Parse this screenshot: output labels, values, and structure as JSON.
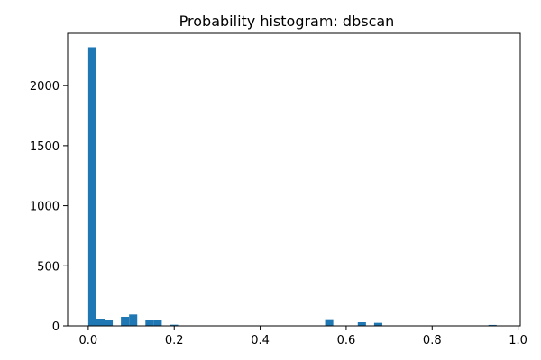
{
  "chart_data": {
    "type": "bar",
    "title": "Probability histogram: dbscan",
    "xlabel": "",
    "ylabel": "",
    "xlim": [
      -0.048,
      1.005
    ],
    "ylim": [
      0,
      2436
    ],
    "xticks": [
      0.0,
      0.2,
      0.4,
      0.6,
      0.8,
      1.0
    ],
    "xtick_labels": [
      "0.0",
      "0.2",
      "0.4",
      "0.6",
      "0.8",
      "1.0"
    ],
    "yticks": [
      0,
      500,
      1000,
      1500,
      2000
    ],
    "ytick_labels": [
      "0",
      "500",
      "1000",
      "1500",
      "2000"
    ],
    "grid": false,
    "bar_color": "#1f77b4",
    "bins": {
      "start": 0.0,
      "width": 0.019,
      "counts": [
        2320,
        60,
        45,
        0,
        75,
        95,
        0,
        45,
        45,
        0,
        10,
        0,
        0,
        0,
        0,
        0,
        0,
        0,
        0,
        0,
        0,
        0,
        0,
        0,
        0,
        0,
        0,
        0,
        0,
        55,
        0,
        0,
        0,
        30,
        0,
        25,
        0,
        0,
        0,
        0,
        0,
        0,
        0,
        0,
        0,
        0,
        0,
        0,
        0,
        8
      ]
    }
  }
}
